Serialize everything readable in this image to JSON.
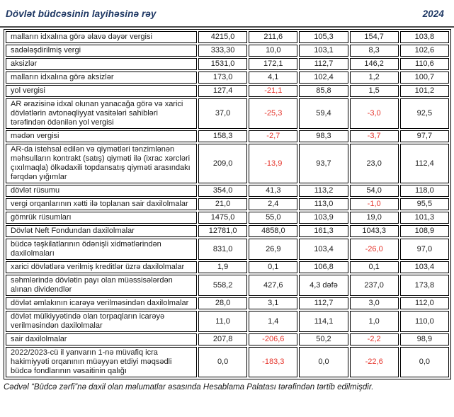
{
  "header": {
    "title": "Dövlət büdcəsinin layihəsinə rəy",
    "year": "2024"
  },
  "colors": {
    "accent_navy": "#1f3864",
    "negative_red": "#e5342b",
    "text_color": "#1a1a1a",
    "border_color": "#000000"
  },
  "table": {
    "rows": [
      {
        "label": "malların idxalına görə əlavə dəyər vergisi",
        "values": [
          "4215,0",
          "211,6",
          "105,3",
          "154,7",
          "103,8"
        ]
      },
      {
        "label": "sadələşdirilmiş vergi",
        "values": [
          "333,30",
          "10,0",
          "103,1",
          "8,3",
          "102,6"
        ]
      },
      {
        "label": "aksizlər",
        "values": [
          "1531,0",
          "172,1",
          "112,7",
          "146,2",
          "110,6"
        ]
      },
      {
        "label": "malların idxalına görə aksizlər",
        "values": [
          "173,0",
          "4,1",
          "102,4",
          "1,2",
          "100,7"
        ]
      },
      {
        "label": "yol vergisi",
        "values": [
          "127,4",
          "-21,1",
          "85,8",
          "1,5",
          "101,2"
        ]
      },
      {
        "label": "AR ərazisinə idxal olunan yanacağa görə və xarici dövlətlərin avtonəqliyyat vasitələri sahibləri tərəfindən ödənilən yol vergisi",
        "values": [
          "37,0",
          "-25,3",
          "59,4",
          "-3,0",
          "92,5"
        ]
      },
      {
        "label": "mədən vergisi",
        "values": [
          "158,3",
          "-2,7",
          "98,3",
          "-3,7",
          "97,7"
        ]
      },
      {
        "label": "AR-da istehsal edilən və qiymətləri tənzimlənən məhsulların kontrakt (satış) qiyməti ilə (ixrac xərcləri çıxılmaqla) ölkədaxili topdansatış qiyməti arasındakı fərqdən yığımlar",
        "values": [
          "209,0",
          "-13,9",
          "93,7",
          "23,0",
          "112,4"
        ]
      },
      {
        "label": "dövlət rüsumu",
        "values": [
          "354,0",
          "41,3",
          "113,2",
          "54,0",
          "118,0"
        ]
      },
      {
        "label": "vergi orqanlarının xətti ilə toplanan sair daxilolmalar",
        "values": [
          "21,0",
          "2,4",
          "113,0",
          "-1,0",
          "95,5"
        ]
      },
      {
        "label": "gömrük rüsumları",
        "values": [
          "1475,0",
          "55,0",
          "103,9",
          "19,0",
          "101,3"
        ]
      },
      {
        "label": "Dövlət Neft Fondundan daxilolmalar",
        "values": [
          "12781,0",
          "4858,0",
          "161,3",
          "1043,3",
          "108,9"
        ]
      },
      {
        "label": "büdcə təşkilatlarının ödənişli xidmətlərindən daxilolmaları",
        "values": [
          "831,0",
          "26,9",
          "103,4",
          "-26,0",
          "97,0"
        ]
      },
      {
        "label": "xarici dövlətlərə verilmiş kreditlər üzrə daxilolmalar",
        "values": [
          "1,9",
          "0,1",
          "106,8",
          "0,1",
          "103,4"
        ]
      },
      {
        "label": "səhmlərində dövlətin payı olan müəssisələrdən alınan dividendlər",
        "values": [
          "558,2",
          "427,6",
          "4,3 dəfə",
          "237,0",
          "173,8"
        ]
      },
      {
        "label": "dövlət əmlakının icarəyə verilməsindən daxilolmalar",
        "values": [
          "28,0",
          "3,1",
          "112,7",
          "3,0",
          "112,0"
        ]
      },
      {
        "label": "dövlət mülkiyyətində olan torpaqların icarəyə verilməsindən daxilolmalar",
        "values": [
          "11,0",
          "1,4",
          "114,1",
          "1,0",
          "110,0"
        ]
      },
      {
        "label": "sair daxilolmalar",
        "values": [
          "207,8",
          "-206,6",
          "50,2",
          "-2,2",
          "98,9"
        ]
      },
      {
        "label": "2022/2023-cü il yanvarın 1-nə müvafiq icra hakimiyyəti orqanının müəyyən etdiyi məqsədli büdcə fondlarının vəsaitinin qalığı",
        "values": [
          "0,0",
          "-183,3",
          "0,0",
          "-22,6",
          "0,0"
        ]
      }
    ]
  },
  "footer": {
    "note": "Cədvəl “Büdcə zərfi”nə daxil olan məlumatlar əsasında Hesablama Palatası tərəfindən tərtib edilmişdir."
  }
}
